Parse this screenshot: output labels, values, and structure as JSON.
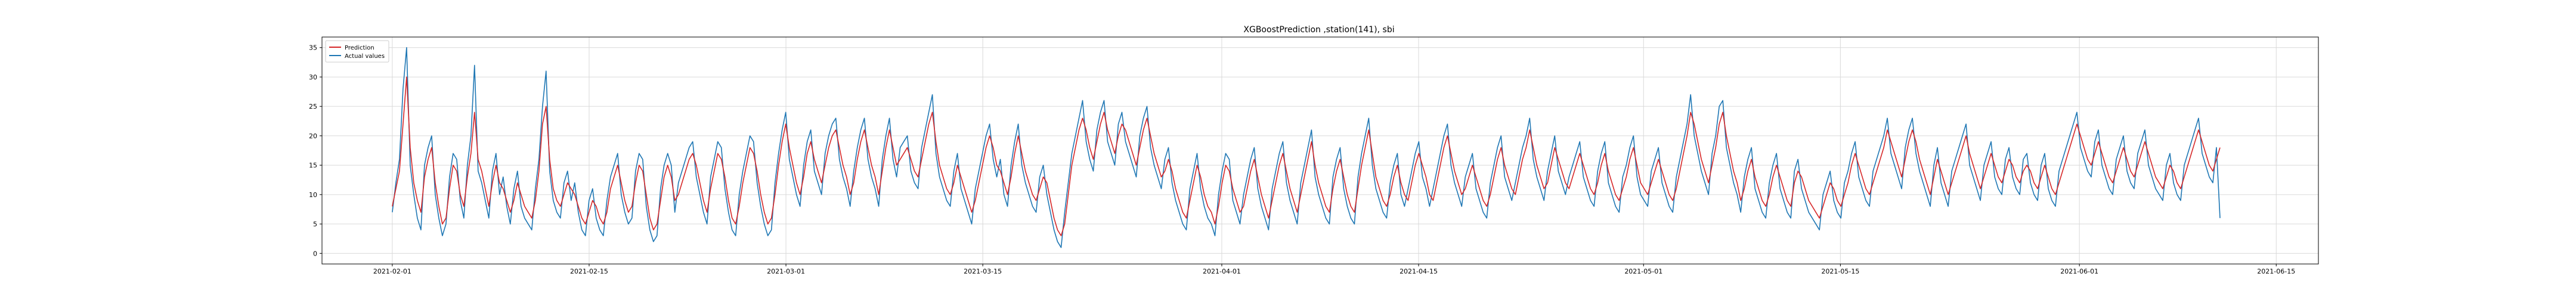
{
  "chart_data": {
    "type": "line",
    "title": "XGBoostPrediction ,station(141), sbi",
    "xlabel": "",
    "ylabel": "",
    "x_ticks": [
      "2021-02-01",
      "2021-02-15",
      "2021-03-01",
      "2021-03-15",
      "2021-04-01",
      "2021-04-15",
      "2021-05-01",
      "2021-05-15",
      "2021-06-01",
      "2021-06-15"
    ],
    "xlim": [
      "2021-01-27",
      "2021-06-18"
    ],
    "y_ticks": [
      0,
      5,
      10,
      15,
      20,
      25,
      30,
      35
    ],
    "ylim": [
      -1.8,
      36.8
    ],
    "grid": true,
    "legend_position": "upper-left",
    "x_start": "2021-02-01",
    "x_end": "2021-06-11",
    "series": [
      {
        "name": "Prediction",
        "color": "#d62728",
        "y": [
          8,
          11,
          14,
          22,
          30,
          18,
          12,
          9,
          7,
          13,
          16,
          18,
          12,
          8,
          5,
          6,
          11,
          15,
          14,
          10,
          8,
          13,
          17,
          24,
          16,
          14,
          11,
          8,
          12,
          15,
          12,
          11,
          9,
          7,
          9,
          12,
          10,
          8,
          7,
          6,
          9,
          14,
          22,
          25,
          16,
          11,
          9,
          8,
          10,
          12,
          11,
          10,
          8,
          6,
          5,
          7,
          9,
          8,
          6,
          5,
          7,
          11,
          13,
          15,
          12,
          9,
          7,
          8,
          12,
          15,
          14,
          10,
          6,
          4,
          5,
          9,
          13,
          15,
          13,
          9,
          10,
          12,
          14,
          16,
          17,
          15,
          12,
          9,
          7,
          11,
          14,
          17,
          16,
          13,
          9,
          6,
          5,
          8,
          12,
          15,
          18,
          17,
          14,
          10,
          7,
          5,
          6,
          10,
          15,
          19,
          22,
          18,
          15,
          12,
          10,
          13,
          17,
          19,
          16,
          14,
          12,
          15,
          18,
          20,
          21,
          18,
          15,
          13,
          10,
          12,
          16,
          19,
          21,
          18,
          15,
          13,
          10,
          14,
          18,
          21,
          18,
          15,
          16,
          17,
          18,
          16,
          14,
          13,
          16,
          19,
          22,
          24,
          19,
          15,
          13,
          11,
          10,
          12,
          15,
          13,
          11,
          9,
          7,
          9,
          12,
          15,
          18,
          20,
          18,
          15,
          14,
          12,
          10,
          13,
          17,
          20,
          17,
          14,
          12,
          10,
          9,
          11,
          13,
          12,
          9,
          6,
          4,
          3,
          5,
          10,
          15,
          18,
          21,
          23,
          21,
          18,
          16,
          19,
          22,
          24,
          21,
          19,
          17,
          20,
          22,
          21,
          19,
          17,
          15,
          18,
          21,
          23,
          20,
          17,
          15,
          13,
          14,
          16,
          14,
          11,
          9,
          7,
          6,
          9,
          12,
          15,
          13,
          10,
          8,
          7,
          5,
          8,
          12,
          15,
          14,
          11,
          9,
          7,
          8,
          11,
          14,
          16,
          13,
          10,
          8,
          6,
          9,
          12,
          15,
          17,
          14,
          11,
          9,
          7,
          10,
          13,
          16,
          19,
          15,
          12,
          10,
          8,
          7,
          11,
          14,
          16,
          13,
          10,
          8,
          7,
          11,
          15,
          18,
          21,
          17,
          13,
          11,
          9,
          8,
          10,
          13,
          15,
          12,
          10,
          9,
          12,
          15,
          17,
          15,
          13,
          10,
          9,
          12,
          15,
          18,
          20,
          17,
          14,
          12,
          10,
          11,
          13,
          15,
          13,
          11,
          9,
          8,
          10,
          13,
          16,
          18,
          15,
          13,
          11,
          10,
          13,
          16,
          18,
          21,
          18,
          15,
          13,
          11,
          12,
          15,
          18,
          16,
          14,
          12,
          11,
          13,
          15,
          17,
          15,
          13,
          11,
          10,
          12,
          15,
          17,
          14,
          12,
          10,
          9,
          11,
          13,
          16,
          18,
          15,
          12,
          11,
          10,
          12,
          14,
          16,
          14,
          12,
          10,
          9,
          11,
          14,
          17,
          20,
          24,
          22,
          19,
          16,
          14,
          12,
          15,
          18,
          22,
          24,
          20,
          17,
          14,
          12,
          9,
          11,
          14,
          16,
          13,
          11,
          9,
          8,
          10,
          13,
          15,
          13,
          11,
          9,
          8,
          12,
          14,
          13,
          11,
          9,
          8,
          7,
          6,
          8,
          10,
          12,
          11,
          9,
          8,
          10,
          12,
          15,
          17,
          15,
          13,
          11,
          10,
          12,
          14,
          16,
          18,
          21,
          19,
          17,
          15,
          13,
          16,
          19,
          21,
          19,
          16,
          14,
          12,
          10,
          13,
          16,
          14,
          12,
          10,
          12,
          14,
          16,
          18,
          20,
          17,
          15,
          13,
          11,
          13,
          15,
          17,
          15,
          13,
          12,
          14,
          16,
          15,
          13,
          12,
          14,
          15,
          14,
          12,
          11,
          13,
          15,
          13,
          11,
          10,
          12,
          14,
          16,
          18,
          20,
          22,
          20,
          18,
          16,
          15,
          17,
          19,
          17,
          15,
          13,
          12,
          14,
          16,
          18,
          16,
          14,
          13,
          15,
          17,
          19,
          17,
          15,
          13,
          12,
          11,
          13,
          15,
          14,
          12,
          11,
          13,
          15,
          17,
          19,
          21,
          19,
          17,
          15,
          14,
          16,
          18
        ]
      },
      {
        "name": "Actual values",
        "color": "#1f77b4",
        "y": [
          7,
          12,
          16,
          28,
          35,
          15,
          10,
          6,
          4,
          15,
          18,
          20,
          10,
          6,
          3,
          5,
          13,
          17,
          16,
          9,
          6,
          15,
          20,
          32,
          14,
          12,
          9,
          6,
          14,
          17,
          10,
          13,
          8,
          5,
          11,
          14,
          8,
          6,
          5,
          4,
          11,
          16,
          25,
          31,
          14,
          9,
          7,
          6,
          12,
          14,
          9,
          12,
          7,
          4,
          3,
          9,
          11,
          6,
          4,
          3,
          9,
          13,
          15,
          17,
          10,
          7,
          5,
          6,
          14,
          17,
          16,
          8,
          4,
          2,
          3,
          11,
          15,
          17,
          15,
          7,
          12,
          14,
          16,
          18,
          19,
          13,
          10,
          7,
          5,
          13,
          16,
          19,
          18,
          11,
          7,
          4,
          3,
          10,
          14,
          17,
          20,
          19,
          12,
          8,
          5,
          3,
          4,
          12,
          17,
          21,
          24,
          16,
          13,
          10,
          8,
          15,
          19,
          21,
          14,
          12,
          10,
          17,
          20,
          22,
          23,
          16,
          13,
          11,
          8,
          14,
          18,
          21,
          23,
          16,
          13,
          11,
          8,
          16,
          20,
          23,
          16,
          13,
          18,
          19,
          20,
          14,
          12,
          11,
          18,
          21,
          24,
          27,
          17,
          13,
          11,
          9,
          8,
          14,
          17,
          11,
          9,
          7,
          5,
          11,
          14,
          17,
          20,
          22,
          16,
          13,
          16,
          10,
          8,
          15,
          19,
          22,
          15,
          12,
          10,
          8,
          7,
          13,
          15,
          10,
          7,
          4,
          2,
          1,
          7,
          12,
          17,
          20,
          23,
          26,
          19,
          16,
          14,
          21,
          24,
          26,
          19,
          17,
          15,
          22,
          24,
          19,
          17,
          15,
          13,
          20,
          23,
          25,
          18,
          15,
          13,
          11,
          16,
          18,
          12,
          9,
          7,
          5,
          4,
          11,
          14,
          17,
          11,
          8,
          6,
          5,
          3,
          10,
          14,
          17,
          16,
          9,
          7,
          5,
          10,
          13,
          16,
          18,
          11,
          8,
          6,
          4,
          11,
          14,
          17,
          19,
          12,
          9,
          7,
          5,
          12,
          15,
          18,
          21,
          13,
          10,
          8,
          6,
          5,
          13,
          16,
          18,
          11,
          8,
          6,
          5,
          13,
          17,
          20,
          23,
          15,
          11,
          9,
          7,
          6,
          12,
          15,
          17,
          10,
          8,
          11,
          14,
          17,
          19,
          13,
          11,
          8,
          11,
          14,
          17,
          20,
          22,
          15,
          12,
          10,
          8,
          13,
          15,
          17,
          11,
          9,
          7,
          6,
          12,
          15,
          18,
          20,
          13,
          11,
          9,
          12,
          15,
          18,
          20,
          23,
          16,
          13,
          11,
          9,
          14,
          17,
          20,
          14,
          12,
          10,
          13,
          15,
          17,
          19,
          13,
          11,
          9,
          8,
          14,
          17,
          19,
          12,
          10,
          8,
          7,
          13,
          15,
          18,
          20,
          13,
          10,
          9,
          8,
          14,
          16,
          18,
          12,
          10,
          8,
          7,
          13,
          16,
          19,
          22,
          27,
          20,
          17,
          14,
          12,
          10,
          17,
          20,
          25,
          26,
          18,
          15,
          12,
          10,
          7,
          13,
          16,
          18,
          11,
          9,
          7,
          6,
          12,
          15,
          17,
          11,
          9,
          7,
          6,
          14,
          16,
          11,
          9,
          7,
          6,
          5,
          4,
          10,
          12,
          14,
          9,
          7,
          6,
          12,
          14,
          17,
          19,
          13,
          11,
          9,
          8,
          14,
          16,
          18,
          20,
          23,
          17,
          15,
          13,
          11,
          18,
          21,
          23,
          17,
          14,
          12,
          10,
          8,
          15,
          18,
          12,
          10,
          8,
          14,
          16,
          18,
          20,
          22,
          15,
          13,
          11,
          9,
          15,
          17,
          19,
          13,
          11,
          10,
          16,
          18,
          13,
          11,
          10,
          16,
          17,
          12,
          10,
          9,
          15,
          17,
          11,
          9,
          8,
          14,
          16,
          18,
          20,
          22,
          24,
          18,
          16,
          14,
          13,
          19,
          21,
          15,
          13,
          11,
          10,
          16,
          18,
          20,
          14,
          12,
          11,
          17,
          19,
          21,
          15,
          13,
          11,
          10,
          9,
          15,
          17,
          12,
          10,
          9,
          15,
          17,
          19,
          21,
          23,
          17,
          15,
          13,
          12,
          18,
          6
        ]
      }
    ]
  }
}
